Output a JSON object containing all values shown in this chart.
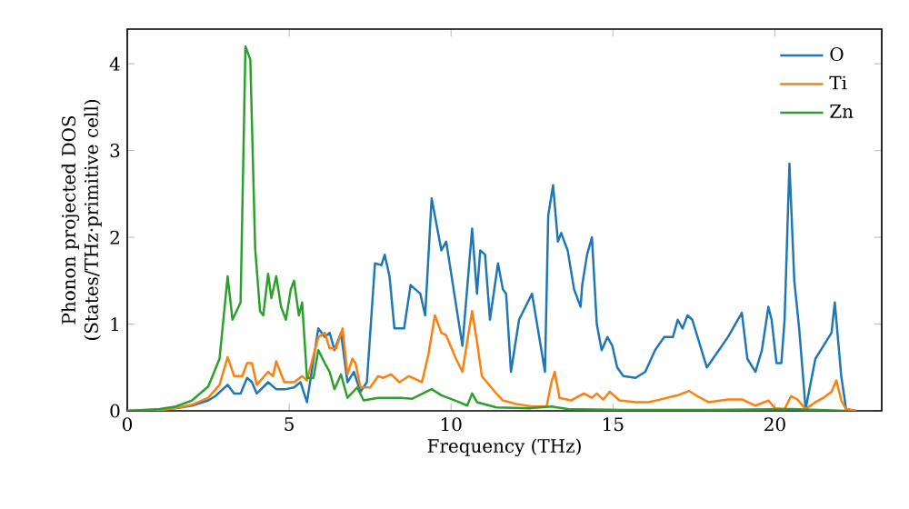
{
  "chart_data": {
    "type": "line",
    "xlabel": "Frequency (THz)",
    "ylabel": "Phonon projected DOS (States/THz·primitive cell)",
    "xlim": [
      0,
      23.3
    ],
    "ylim": [
      0,
      4.4
    ],
    "xticks": [
      0,
      5,
      10,
      15,
      20
    ],
    "yticks": [
      0,
      1,
      2,
      3,
      4
    ],
    "grid": false,
    "legend": "top right",
    "marker": "none",
    "line_style": "solid",
    "series": [
      {
        "name": "O",
        "color": "#1f77b4",
        "x": [
          0,
          1,
          1.5,
          2,
          2.5,
          2.72,
          3.1,
          3.3,
          3.5,
          3.7,
          3.85,
          4.0,
          4.35,
          4.6,
          4.9,
          5.15,
          5.35,
          5.55,
          5.9,
          6.1,
          6.25,
          6.4,
          6.6,
          6.8,
          7.0,
          7.2,
          7.4,
          7.65,
          7.85,
          7.95,
          8.1,
          8.25,
          8.55,
          8.75,
          9.05,
          9.2,
          9.4,
          9.7,
          9.85,
          10.35,
          10.65,
          10.8,
          10.9,
          11.05,
          11.2,
          11.45,
          11.6,
          11.7,
          11.85,
          12.1,
          12.5,
          12.9,
          13.0,
          13.15,
          13.3,
          13.4,
          13.6,
          13.8,
          14.0,
          14.05,
          14.2,
          14.35,
          14.5,
          14.65,
          14.83,
          14.98,
          15.13,
          15.32,
          15.7,
          16.0,
          16.3,
          16.58,
          16.85,
          17.0,
          17.15,
          17.3,
          17.45,
          17.9,
          18.55,
          18.98,
          19.15,
          19.4,
          19.6,
          19.8,
          19.9,
          20.05,
          20.2,
          20.3,
          20.45,
          20.6,
          20.75,
          20.95,
          21.25,
          21.5,
          21.75,
          21.85,
          22.05,
          22.2,
          22.5
        ],
        "values": [
          0,
          0.01,
          0.03,
          0.06,
          0.12,
          0.17,
          0.3,
          0.2,
          0.2,
          0.38,
          0.33,
          0.2,
          0.33,
          0.25,
          0.25,
          0.27,
          0.33,
          0.1,
          0.95,
          0.85,
          0.9,
          0.7,
          0.9,
          0.33,
          0.45,
          0.22,
          0.33,
          1.7,
          1.68,
          1.8,
          1.55,
          0.95,
          0.95,
          1.45,
          1.35,
          1.1,
          2.45,
          1.85,
          1.95,
          0.75,
          2.1,
          1.35,
          1.85,
          1.8,
          1.05,
          1.7,
          1.4,
          1.35,
          0.45,
          1.05,
          1.35,
          0.45,
          2.25,
          2.6,
          1.95,
          2.05,
          1.85,
          1.4,
          1.2,
          1.45,
          1.8,
          2.0,
          1.0,
          0.7,
          0.85,
          0.75,
          0.5,
          0.4,
          0.38,
          0.45,
          0.7,
          0.85,
          0.85,
          1.05,
          0.95,
          1.1,
          1.05,
          0.5,
          0.85,
          1.13,
          0.6,
          0.45,
          0.7,
          1.2,
          1.05,
          0.55,
          0.55,
          1.05,
          2.85,
          1.5,
          0.95,
          0.02,
          0.6,
          0.75,
          0.9,
          1.25,
          0.4,
          0.02,
          0
        ]
      },
      {
        "name": "Ti",
        "color": "#ff7f0e",
        "x": [
          0,
          1,
          1.5,
          2,
          2.5,
          2.85,
          3.1,
          3.3,
          3.55,
          3.7,
          3.85,
          4.0,
          4.35,
          4.5,
          4.6,
          4.85,
          5.15,
          5.4,
          5.55,
          5.9,
          6.1,
          6.25,
          6.45,
          6.65,
          6.8,
          6.95,
          7.05,
          7.2,
          7.5,
          7.75,
          7.9,
          8.15,
          8.4,
          8.7,
          9.1,
          9.3,
          9.5,
          9.7,
          9.85,
          10.15,
          10.35,
          10.65,
          10.8,
          10.95,
          11.35,
          11.6,
          12.0,
          12.5,
          12.95,
          13.1,
          13.2,
          13.35,
          13.7,
          14.1,
          14.35,
          14.5,
          14.7,
          14.9,
          15.2,
          15.7,
          16.1,
          16.45,
          17.0,
          17.35,
          17.6,
          17.95,
          18.55,
          19.0,
          19.4,
          19.8,
          20.0,
          20.3,
          20.5,
          20.7,
          20.95,
          21.25,
          21.5,
          21.75,
          21.9,
          22.05,
          22.2,
          22.5
        ],
        "values": [
          0,
          0.01,
          0.03,
          0.07,
          0.15,
          0.3,
          0.62,
          0.4,
          0.4,
          0.55,
          0.55,
          0.3,
          0.45,
          0.4,
          0.57,
          0.33,
          0.33,
          0.4,
          0.35,
          0.85,
          0.9,
          0.72,
          0.72,
          0.95,
          0.42,
          0.6,
          0.55,
          0.27,
          0.27,
          0.4,
          0.38,
          0.42,
          0.33,
          0.4,
          0.33,
          0.65,
          1.1,
          0.9,
          0.87,
          0.6,
          0.45,
          1.15,
          0.8,
          0.4,
          0.22,
          0.12,
          0.08,
          0.05,
          0.05,
          0.33,
          0.45,
          0.15,
          0.12,
          0.2,
          0.15,
          0.2,
          0.13,
          0.22,
          0.12,
          0.1,
          0.1,
          0.13,
          0.18,
          0.23,
          0.17,
          0.1,
          0.13,
          0.13,
          0.06,
          0.12,
          0.03,
          0.02,
          0.17,
          0.13,
          0.02,
          0.1,
          0.15,
          0.22,
          0.35,
          0.12,
          0.02,
          0
        ]
      },
      {
        "name": "Zn",
        "color": "#2ca02c",
        "x": [
          0,
          1,
          1.5,
          2,
          2.5,
          2.85,
          3.1,
          3.25,
          3.5,
          3.65,
          3.8,
          3.95,
          4.1,
          4.2,
          4.35,
          4.45,
          4.6,
          4.75,
          4.9,
          5.05,
          5.15,
          5.3,
          5.4,
          5.55,
          5.75,
          5.9,
          6.1,
          6.25,
          6.4,
          6.6,
          6.8,
          7.1,
          7.3,
          7.75,
          8.45,
          8.8,
          9.4,
          9.7,
          10.25,
          10.5,
          10.65,
          10.8,
          11.4,
          12.45,
          13.1,
          13.6,
          15.3,
          18.0,
          20.5,
          22.2
        ],
        "values": [
          0,
          0.02,
          0.05,
          0.12,
          0.28,
          0.6,
          1.55,
          1.05,
          1.25,
          4.2,
          4.05,
          1.87,
          1.15,
          1.1,
          1.58,
          1.3,
          1.55,
          1.2,
          1.05,
          1.4,
          1.5,
          1.1,
          1.25,
          0.38,
          0.38,
          0.7,
          0.55,
          0.45,
          0.25,
          0.42,
          0.15,
          0.27,
          0.12,
          0.15,
          0.15,
          0.14,
          0.25,
          0.18,
          0.1,
          0.06,
          0.2,
          0.1,
          0.04,
          0.03,
          0.05,
          0.02,
          0.01,
          0.01,
          0.02,
          0
        ]
      }
    ]
  }
}
